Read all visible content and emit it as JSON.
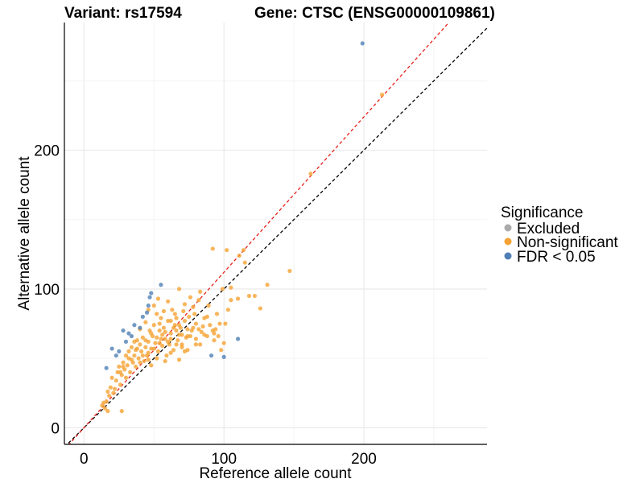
{
  "chart_data": {
    "type": "scatter",
    "title_left": "Variant: rs17594",
    "title_right": "Gene: CTSC (ENSG00000109861)",
    "xlabel": "Reference allele count",
    "ylabel": "Alternative allele count",
    "xlim": [
      -14,
      288
    ],
    "ylim": [
      -12,
      292
    ],
    "xticks": [
      0,
      100,
      200
    ],
    "yticks": [
      0,
      100,
      200
    ],
    "grid": true,
    "legend": {
      "title": "Significance",
      "placement": "right",
      "entries": [
        {
          "label": "Excluded",
          "color": "#aaaaaa"
        },
        {
          "label": "Non-significant",
          "color": "#f5a233"
        },
        {
          "label": "FDR < 0.05",
          "color": "#4f7fb5"
        }
      ]
    },
    "reference_lines": [
      {
        "name": "identity",
        "color": "#000000",
        "slope": 1.0,
        "intercept": 0
      },
      {
        "name": "fit",
        "color": "#e8201a",
        "slope": 1.12,
        "intercept": 0
      }
    ],
    "series": [
      {
        "name": "Non-significant",
        "color": "#f5a233",
        "points": [
          [
            213,
            240
          ],
          [
            162,
            183
          ],
          [
            147,
            113
          ],
          [
            126,
            86
          ],
          [
            131,
            103
          ],
          [
            122,
            95
          ],
          [
            118,
            95
          ],
          [
            115,
            119
          ],
          [
            114,
            128
          ],
          [
            111,
            124
          ],
          [
            102,
            128
          ],
          [
            92,
            129
          ],
          [
            110,
            93
          ],
          [
            105,
            101
          ],
          [
            103,
            85
          ],
          [
            101,
            75
          ],
          [
            95,
            82
          ],
          [
            100,
            61
          ],
          [
            97,
            75
          ],
          [
            98,
            56
          ],
          [
            92,
            70
          ],
          [
            93,
            63
          ],
          [
            89,
            88
          ],
          [
            86,
            67
          ],
          [
            88,
            80
          ],
          [
            83,
            98
          ],
          [
            82,
            92
          ],
          [
            85,
            73
          ],
          [
            83,
            60
          ],
          [
            80,
            75
          ],
          [
            79,
            82
          ],
          [
            78,
            87
          ],
          [
            76,
            94
          ],
          [
            77,
            70
          ],
          [
            75,
            80
          ],
          [
            74,
            56
          ],
          [
            73,
            65
          ],
          [
            72,
            77
          ],
          [
            71,
            84
          ],
          [
            70,
            58
          ],
          [
            69,
            72
          ],
          [
            68,
            67
          ],
          [
            68,
            49
          ],
          [
            67,
            63
          ],
          [
            66,
            79
          ],
          [
            65,
            74
          ],
          [
            64,
            56
          ],
          [
            63,
            85
          ],
          [
            62,
            68
          ],
          [
            61,
            60
          ],
          [
            60,
            91
          ],
          [
            60,
            77
          ],
          [
            59,
            52
          ],
          [
            58,
            64
          ],
          [
            57,
            72
          ],
          [
            56,
            59
          ],
          [
            55,
            79
          ],
          [
            55,
            64
          ],
          [
            54,
            70
          ],
          [
            53,
            55
          ],
          [
            52,
            50
          ],
          [
            52,
            82
          ],
          [
            51,
            61
          ],
          [
            50,
            74
          ],
          [
            49,
            66
          ],
          [
            48,
            45
          ],
          [
            48,
            57
          ],
          [
            47,
            70
          ],
          [
            46,
            62
          ],
          [
            46,
            85
          ],
          [
            45,
            52
          ],
          [
            44,
            58
          ],
          [
            44,
            76
          ],
          [
            43,
            48
          ],
          [
            42,
            65
          ],
          [
            41,
            55
          ],
          [
            40,
            71
          ],
          [
            40,
            60
          ],
          [
            39,
            50
          ],
          [
            38,
            63
          ],
          [
            37,
            44
          ],
          [
            37,
            56
          ],
          [
            36,
            52
          ],
          [
            35,
            47
          ],
          [
            34,
            58
          ],
          [
            33,
            40
          ],
          [
            32,
            50
          ],
          [
            31,
            45
          ],
          [
            30,
            36
          ],
          [
            29,
            42
          ],
          [
            28,
            47
          ],
          [
            27,
            38
          ],
          [
            26,
            31
          ],
          [
            25,
            44
          ],
          [
            24,
            40
          ],
          [
            23,
            34
          ],
          [
            22,
            28
          ],
          [
            21,
            25
          ],
          [
            20,
            36
          ],
          [
            19,
            29
          ],
          [
            18,
            23
          ],
          [
            17,
            26
          ],
          [
            16,
            19
          ],
          [
            15,
            14
          ],
          [
            14,
            18
          ],
          [
            17,
            12
          ],
          [
            13,
            16
          ],
          [
            27,
            12
          ],
          [
            56,
            67
          ],
          [
            58,
            48
          ],
          [
            62,
            54
          ],
          [
            64,
            72
          ],
          [
            66,
            60
          ],
          [
            70,
            67
          ],
          [
            72,
            55
          ],
          [
            74,
            66
          ],
          [
            78,
            72
          ],
          [
            80,
            64
          ],
          [
            84,
            69
          ],
          [
            86,
            79
          ],
          [
            90,
            74
          ],
          [
            94,
            71
          ],
          [
            96,
            66
          ],
          [
            62,
            64
          ],
          [
            54,
            61
          ],
          [
            50,
            57
          ],
          [
            48,
            68
          ],
          [
            46,
            54
          ],
          [
            42,
            52
          ],
          [
            38,
            57
          ],
          [
            36,
            62
          ],
          [
            34,
            49
          ],
          [
            32,
            55
          ],
          [
            30,
            52
          ],
          [
            28,
            44
          ],
          [
            26,
            40
          ],
          [
            52,
            65
          ],
          [
            58,
            69
          ],
          [
            60,
            62
          ],
          [
            66,
            70
          ],
          [
            68,
            74
          ],
          [
            70,
            60
          ],
          [
            74,
            71
          ],
          [
            76,
            66
          ],
          [
            80,
            60
          ],
          [
            82,
            71
          ],
          [
            88,
            66
          ],
          [
            44,
            63
          ],
          [
            40,
            47
          ],
          [
            46,
            49
          ],
          [
            54,
            75
          ],
          [
            57,
            84
          ],
          [
            62,
            77
          ],
          [
            65,
            82
          ],
          [
            50,
            88
          ],
          [
            53,
            93
          ],
          [
            72,
            89
          ],
          [
            68,
            100
          ],
          [
            99,
            100
          ],
          [
            93,
            68
          ],
          [
            105,
            92
          ]
        ]
      },
      {
        "name": "FDR < 0.05",
        "color": "#4f7fb5",
        "points": [
          [
            199,
            277
          ],
          [
            110,
            64
          ],
          [
            100,
            51
          ],
          [
            91,
            52
          ],
          [
            55,
            103
          ],
          [
            48,
            97
          ],
          [
            47,
            94
          ],
          [
            46,
            88
          ],
          [
            45,
            83
          ],
          [
            42,
            80
          ],
          [
            40,
            72
          ],
          [
            36,
            74
          ],
          [
            34,
            66
          ],
          [
            32,
            68
          ],
          [
            30,
            62
          ],
          [
            28,
            70
          ],
          [
            25,
            55
          ],
          [
            23,
            52
          ],
          [
            16,
            43
          ],
          [
            20,
            57
          ]
        ]
      }
    ]
  }
}
